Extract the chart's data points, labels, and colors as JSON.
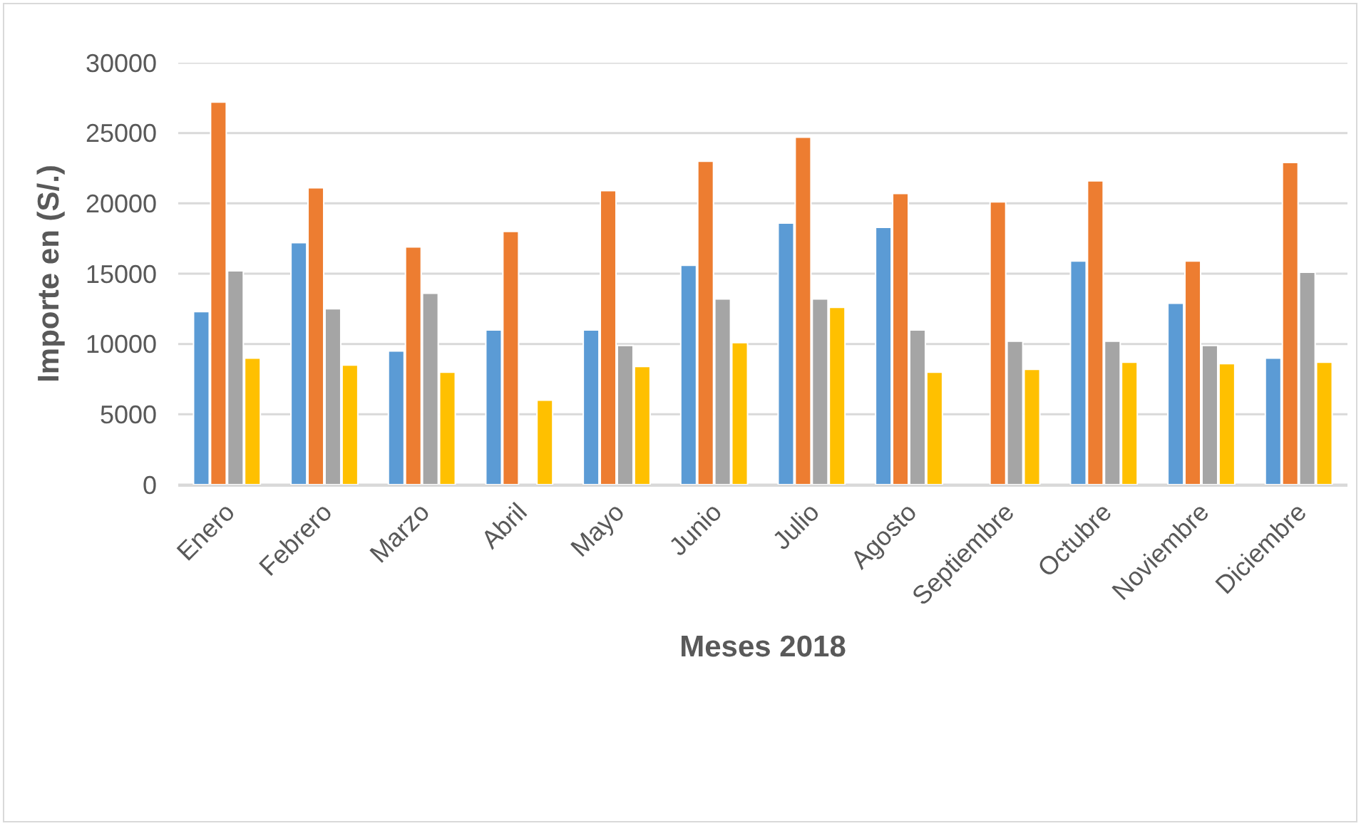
{
  "chart_data": {
    "type": "bar",
    "xlabel": "Meses 2018",
    "ylabel": "Importe en (S/.)",
    "categories": [
      "Enero",
      "Febrero",
      "Marzo",
      "Abril",
      "Mayo",
      "Junio",
      "Julio",
      "Agosto",
      "Septiembre",
      "Octubre",
      "Noviembre",
      "Diciembre"
    ],
    "series": [
      {
        "color": "#5b9bd5",
        "values": [
          12300,
          17200,
          9500,
          11000,
          11000,
          15600,
          18600,
          18300,
          null,
          15900,
          12900,
          9000
        ]
      },
      {
        "color": "#ed7d31",
        "values": [
          27200,
          21100,
          16900,
          18000,
          20900,
          23000,
          24700,
          20700,
          20100,
          21600,
          15900,
          22900
        ]
      },
      {
        "color": "#a5a5a5",
        "values": [
          15200,
          12500,
          13600,
          null,
          9900,
          13200,
          13200,
          11000,
          10200,
          10200,
          9900,
          15100
        ]
      },
      {
        "color": "#ffc000",
        "values": [
          9000,
          8500,
          8000,
          6000,
          8400,
          10100,
          12600,
          8000,
          8200,
          8700,
          8600,
          8700
        ]
      }
    ],
    "ylim": [
      0,
      30000
    ],
    "yticks": [
      0,
      5000,
      10000,
      15000,
      20000,
      25000,
      30000
    ],
    "grid": "y"
  }
}
